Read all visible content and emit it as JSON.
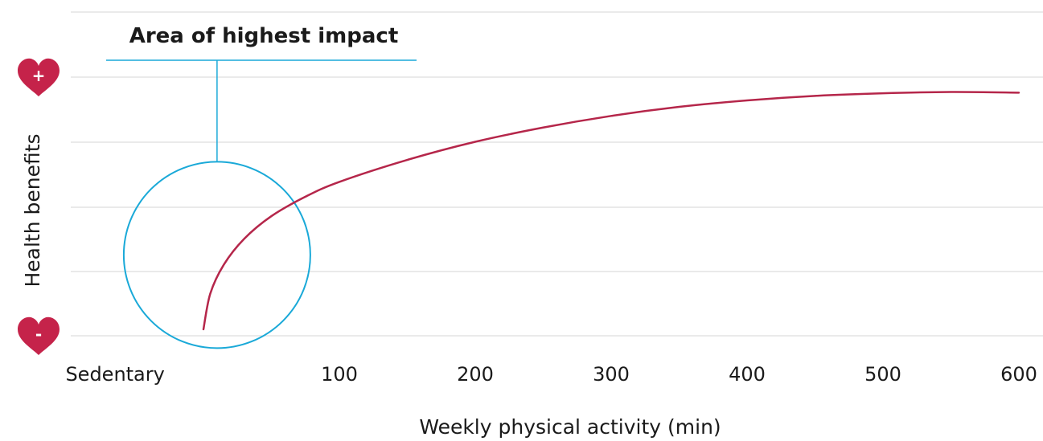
{
  "chart_data": {
    "type": "line",
    "title": "",
    "xlabel": "Weekly physical activity (min)",
    "ylabel": "Health benefits",
    "x_tick_labels": [
      {
        "value": -65,
        "label": "Sedentary"
      },
      {
        "value": 100,
        "label": "100"
      },
      {
        "value": 200,
        "label": "200"
      },
      {
        "value": 300,
        "label": "300"
      },
      {
        "value": 400,
        "label": "400"
      },
      {
        "value": 500,
        "label": "500"
      },
      {
        "value": 600,
        "label": "600"
      }
    ],
    "y_axis_markers": [
      {
        "value": 4,
        "label": "+"
      },
      {
        "value": 0,
        "label": "-"
      }
    ],
    "xlim": [
      -100,
      600
    ],
    "ylim": [
      0,
      4
    ],
    "grid": true,
    "series": [
      {
        "values": [
          {
            "x": 0,
            "y": 0.1
          },
          {
            "x": 5,
            "y": 0.65
          },
          {
            "x": 15,
            "y": 1.1
          },
          {
            "x": 30,
            "y": 1.5
          },
          {
            "x": 50,
            "y": 1.85
          },
          {
            "x": 75,
            "y": 2.15
          },
          {
            "x": 100,
            "y": 2.38
          },
          {
            "x": 150,
            "y": 2.72
          },
          {
            "x": 200,
            "y": 3.0
          },
          {
            "x": 250,
            "y": 3.22
          },
          {
            "x": 300,
            "y": 3.4
          },
          {
            "x": 350,
            "y": 3.54
          },
          {
            "x": 400,
            "y": 3.64
          },
          {
            "x": 450,
            "y": 3.71
          },
          {
            "x": 500,
            "y": 3.75
          },
          {
            "x": 550,
            "y": 3.77
          },
          {
            "x": 600,
            "y": 3.76
          }
        ]
      }
    ],
    "annotations": [
      {
        "label": "Area of highest impact",
        "x": 10,
        "y": 1.25
      }
    ],
    "colors": {
      "series": "#b5264a",
      "annotation": "#1aa9d8",
      "heart": "#c5234a",
      "grid": "#d6d6d6"
    }
  }
}
